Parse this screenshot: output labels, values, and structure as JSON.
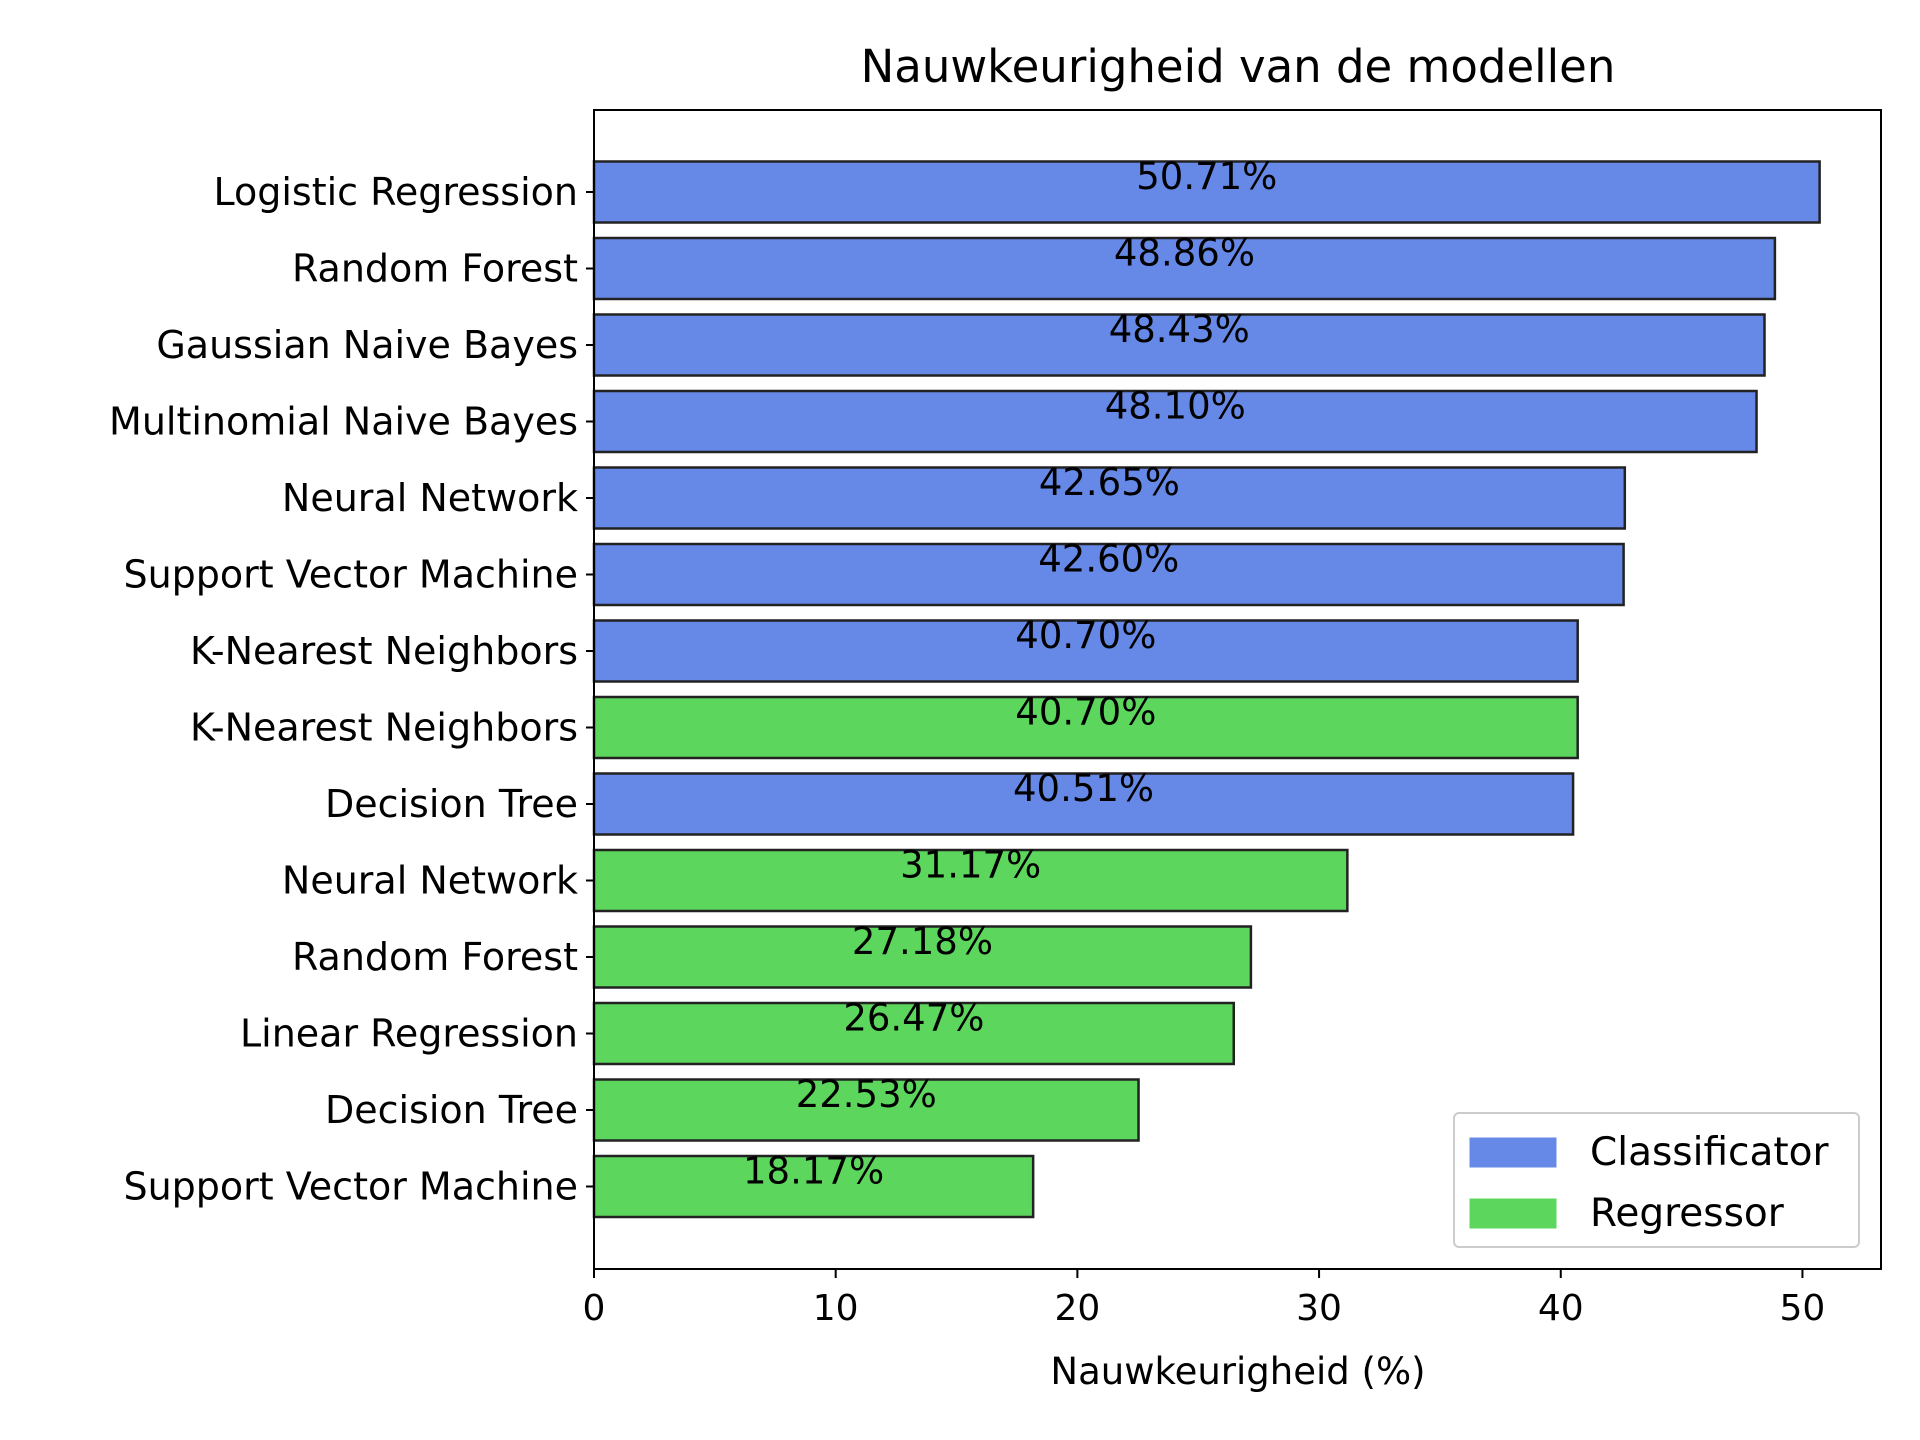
{
  "chart_data": {
    "type": "bar",
    "orientation": "horizontal",
    "title": "Nauwkeurigheid van de modellen",
    "xlabel": "Nauwkeurigheid (%)",
    "ylabel": "",
    "xlim": [
      0,
      53.25
    ],
    "xticks": [
      0,
      10,
      20,
      30,
      40,
      50
    ],
    "grid": false,
    "legend_position": "bottom-right",
    "categories": [
      "Logistic Regression",
      "Random Forest",
      "Gaussian Naive Bayes",
      "Multinomial Naive Bayes",
      "Neural Network",
      "Support Vector Machine",
      "K-Nearest Neighbors",
      "K-Nearest Neighbors",
      "Decision Tree",
      "Neural Network",
      "Random Forest",
      "Linear Regression",
      "Decision Tree",
      "Support Vector Machine"
    ],
    "values": [
      50.71,
      48.86,
      48.43,
      48.1,
      42.65,
      42.6,
      40.7,
      40.7,
      40.51,
      31.17,
      27.18,
      26.47,
      22.53,
      18.17
    ],
    "value_labels": [
      "50.71%",
      "48.86%",
      "48.43%",
      "48.10%",
      "42.65%",
      "42.60%",
      "40.70%",
      "40.70%",
      "40.51%",
      "31.17%",
      "27.18%",
      "26.47%",
      "22.53%",
      "18.17%"
    ],
    "groups": [
      "Classificator",
      "Classificator",
      "Classificator",
      "Classificator",
      "Classificator",
      "Classificator",
      "Classificator",
      "Regressor",
      "Classificator",
      "Regressor",
      "Regressor",
      "Regressor",
      "Regressor",
      "Regressor"
    ],
    "legend": [
      {
        "name": "Classificator",
        "color": "#6688e6"
      },
      {
        "name": "Regressor",
        "color": "#5cd65c"
      }
    ]
  }
}
